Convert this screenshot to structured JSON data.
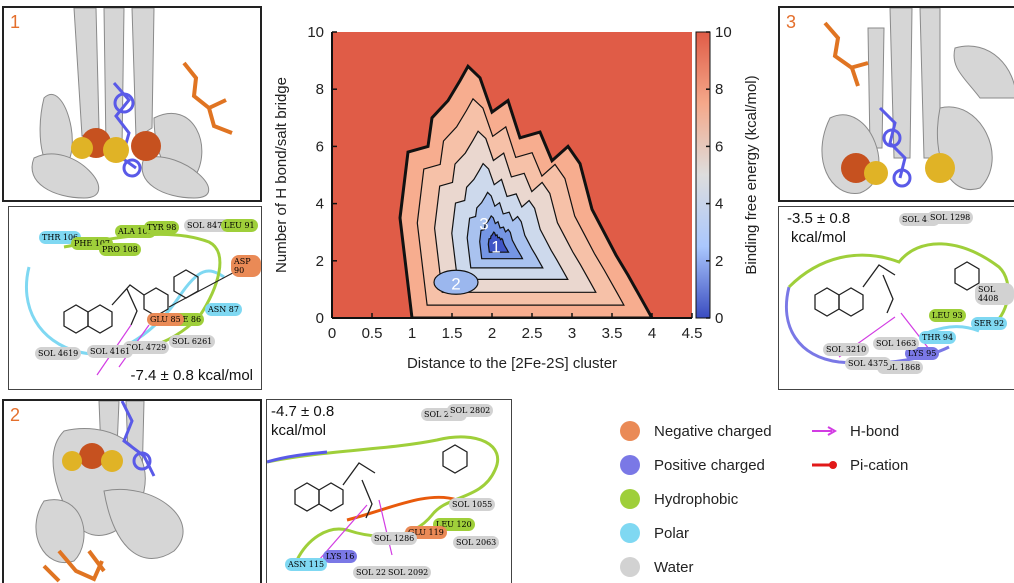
{
  "panels": {
    "p1": {
      "number": "1",
      "energy": "-7.4 ± 0.8 kcal/mol"
    },
    "p2": {
      "number": "2",
      "energy_line1": "-4.7 ± 0.8",
      "energy_line2": "kcal/mol"
    },
    "p3": {
      "number": "3",
      "energy_line1": "-3.5 ± 0.8",
      "energy_line2": "kcal/mol"
    }
  },
  "ligand_labels": {
    "p1": [
      "THR 106",
      "PHE 107",
      "PRO 108",
      "ALA 109",
      "TYR 98",
      "SOL 8474",
      "LEU 91",
      "ASP 90",
      "ASN 87",
      "ILE 86",
      "GLU 85",
      "SOL 6261",
      "SOL 4729",
      "SOL 4161",
      "SOL 4619"
    ],
    "p2": [
      "SOL 2678",
      "SOL 2802",
      "SOL 1055",
      "LEU 120",
      "SOL 2063",
      "GLU 119",
      "SOL 1286",
      "LYS 16",
      "ASN 115",
      "SOL 2274",
      "SOL 2092"
    ],
    "p3": [
      "SOL 466",
      "SOL 1298",
      "SOL 4408",
      "LEU 93",
      "SER 92",
      "THR 94",
      "LYS 95",
      "SOL 1663",
      "SOL 1868",
      "SOL 3210",
      "SOL 4375"
    ]
  },
  "legend": {
    "items": [
      {
        "label": "Negative charged",
        "color": "#ea8a56"
      },
      {
        "label": "Positive charged",
        "color": "#7a78e6"
      },
      {
        "label": "Hydrophobic",
        "color": "#9fcf3a"
      },
      {
        "label": "Polar",
        "color": "#7fd8f2"
      },
      {
        "label": "Water",
        "color": "#d2d2d2"
      }
    ],
    "lines": [
      {
        "label": "H-bond",
        "color": "#d23ce3"
      },
      {
        "label": "Pi-cation",
        "color": "#e11919"
      }
    ]
  },
  "chart_data": {
    "type": "heatmap",
    "xlabel": "Distance to the [2Fe-2S] cluster",
    "ylabel": "Number of H bond/salt bridge",
    "colorbar_label": "Binding free energy (kcal/mol)",
    "xlim": [
      0,
      4.5
    ],
    "ylim": [
      0,
      10
    ],
    "clim": [
      0,
      10
    ],
    "x_ticks": [
      "0",
      "0.5",
      "1",
      "1.5",
      "2",
      "2.5",
      "3",
      "3.5",
      "4",
      "4.5"
    ],
    "y_ticks": [
      "0",
      "2",
      "4",
      "6",
      "8",
      "10"
    ],
    "colorbar_ticks": [
      "0",
      "2",
      "4",
      "6",
      "8",
      "10"
    ],
    "colormap": [
      "#3a4cc0",
      "#aac7fd",
      "#dddddd",
      "#f4a88a",
      "#e05c47"
    ],
    "minima": [
      {
        "label": "1",
        "x": 2.05,
        "y": 2.5
      },
      {
        "label": "2",
        "x": 1.55,
        "y": 1.2
      },
      {
        "label": "3",
        "x": 1.9,
        "y": 3.3
      }
    ],
    "grid": false
  }
}
